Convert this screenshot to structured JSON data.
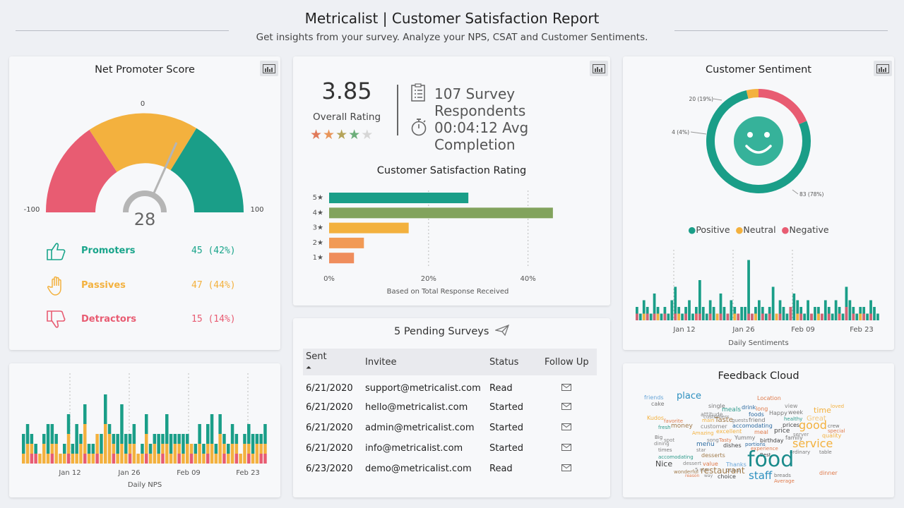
{
  "header": {
    "title": "Metricalist | Customer Satisfaction Report",
    "subtitle": "Get insights from your survey. Analyze your NPS, CSAT and Customer Sentiments."
  },
  "nps": {
    "title": "Net Promoter Score",
    "score": "28",
    "min_label": "-100",
    "max_label": "100",
    "mid_label": "0",
    "rows": [
      {
        "label": "Promoters",
        "value": "45 (42%)",
        "color": "#1aa58b"
      },
      {
        "label": "Passives",
        "value": "47 (44%)",
        "color": "#f3b13e"
      },
      {
        "label": "Detractors",
        "value": "15 (14%)",
        "color": "#e85c72"
      }
    ]
  },
  "summary": {
    "rating": "3.85",
    "rating_label": "Overall Rating",
    "rating_value": 3.85,
    "respondents": "107 Survey Respondents",
    "completion": "00:04:12 Avg Completion"
  },
  "csat": {
    "title": "Customer Satisfaction Rating",
    "footnote": "Based on Total Response Received"
  },
  "pending": {
    "title": "5 Pending Surveys",
    "headers": [
      "Sent",
      "Invitee",
      "Status",
      "Follow Up"
    ],
    "rows": [
      {
        "sent": "6/21/2020",
        "invitee": "support@metricalist.com",
        "status": "Read"
      },
      {
        "sent": "6/21/2020",
        "invitee": "hello@metricalist.com",
        "status": "Started"
      },
      {
        "sent": "6/21/2020",
        "invitee": "admin@metricalist.com",
        "status": "Started"
      },
      {
        "sent": "6/21/2020",
        "invitee": "info@metricalist.com",
        "status": "Started"
      },
      {
        "sent": "6/23/2020",
        "invitee": "demo@metricalist.com",
        "status": "Read"
      }
    ]
  },
  "sentiment": {
    "title": "Customer Sentiment",
    "legend": [
      "Positive",
      "Neutral",
      "Negative"
    ],
    "colors": {
      "positive": "#1a9e88",
      "neutral": "#f3b13e",
      "negative": "#e85c72"
    },
    "daily_label": "Daily Sentiments"
  },
  "daily_nps": {
    "label": "Daily NPS"
  },
  "cloud": {
    "title": "Feedback Cloud",
    "words": [
      {
        "t": "friends",
        "c": "#6aa6d8"
      },
      {
        "t": "cake",
        "c": "#777"
      },
      {
        "t": "place",
        "c": "#2c8fbf"
      },
      {
        "t": "Location",
        "c": "#e07a4a"
      },
      {
        "t": "single",
        "c": "#777"
      },
      {
        "t": "drink",
        "c": "#2c6aa0"
      },
      {
        "t": "long",
        "c": "#e07a4a"
      },
      {
        "t": "view",
        "c": "#888"
      },
      {
        "t": "meals",
        "c": "#2c9b8a"
      },
      {
        "t": "Happy",
        "c": "#777"
      },
      {
        "t": "week",
        "c": "#777"
      },
      {
        "t": "time",
        "c": "#f3b13e"
      },
      {
        "t": "loved",
        "c": "#f3b13e"
      },
      {
        "t": "attitude",
        "c": "#888"
      },
      {
        "t": "foods",
        "c": "#2c6aa0"
      },
      {
        "t": "Kudos",
        "c": "#f3b13e"
      },
      {
        "t": "favorite",
        "c": "#e07a4a"
      },
      {
        "t": "main",
        "c": "#f3b13e"
      },
      {
        "t": "customers",
        "c": "#888"
      },
      {
        "t": "Taste",
        "c": "#a07a4a"
      },
      {
        "t": "guests",
        "c": "#888"
      },
      {
        "t": "friend",
        "c": "#777"
      },
      {
        "t": "healthy",
        "c": "#2c9b8a"
      },
      {
        "t": "Great",
        "c": "#f3c87e"
      },
      {
        "t": "fresh",
        "c": "#2c9b8a"
      },
      {
        "t": "money",
        "c": "#a07a4a"
      },
      {
        "t": "customer",
        "c": "#888"
      },
      {
        "t": "accomodating",
        "c": "#2c6aa0"
      },
      {
        "t": "prices",
        "c": "#444"
      },
      {
        "t": "good",
        "c": "#f3b13e"
      },
      {
        "t": "crew",
        "c": "#777"
      },
      {
        "t": "excellent",
        "c": "#f3b13e"
      },
      {
        "t": "meal",
        "c": "#e07a4a"
      },
      {
        "t": "price",
        "c": "#444"
      },
      {
        "t": "server",
        "c": "#888"
      },
      {
        "t": "special",
        "c": "#e07a4a"
      },
      {
        "t": "Amazing",
        "c": "#f3b13e"
      },
      {
        "t": "Big",
        "c": "#777"
      },
      {
        "t": "song",
        "c": "#888"
      },
      {
        "t": "Tasty",
        "c": "#e07a4a"
      },
      {
        "t": "Yummy",
        "c": "#777"
      },
      {
        "t": "family",
        "c": "#777"
      },
      {
        "t": "quality",
        "c": "#f3b13e"
      },
      {
        "t": "spot",
        "c": "#888"
      },
      {
        "t": "birthday",
        "c": "#444"
      },
      {
        "t": "dining",
        "c": "#888"
      },
      {
        "t": "menu",
        "c": "#2c6aa0"
      },
      {
        "t": "dishes",
        "c": "#444"
      },
      {
        "t": "portions",
        "c": "#2c6aa0"
      },
      {
        "t": "service",
        "c": "#f3b13e"
      },
      {
        "t": "times",
        "c": "#777"
      },
      {
        "t": "star",
        "c": "#888"
      },
      {
        "t": "experience",
        "c": "#e07a4a"
      },
      {
        "t": "ordinary",
        "c": "#777"
      },
      {
        "t": "table",
        "c": "#777"
      },
      {
        "t": "accomodating",
        "c": "#2c9b8a"
      },
      {
        "t": "desserts",
        "c": "#a07a4a"
      },
      {
        "t": "Best",
        "c": "#444"
      },
      {
        "t": "Nice",
        "c": "#444"
      },
      {
        "t": "dessert",
        "c": "#888"
      },
      {
        "t": "value",
        "c": "#e07a4a"
      },
      {
        "t": "Thanks",
        "c": "#6aa6d8"
      },
      {
        "t": "food",
        "c": "#1a8b8b"
      },
      {
        "t": "5 star",
        "c": "#888"
      },
      {
        "t": "Dubai",
        "c": "#888"
      },
      {
        "t": "restaurant",
        "c": "#a07a4a"
      },
      {
        "t": "wonderful",
        "c": "#a07a4a"
      },
      {
        "t": "reason",
        "c": "#e07a4a"
      },
      {
        "t": "way",
        "c": "#888"
      },
      {
        "t": "choice",
        "c": "#444"
      },
      {
        "t": "staff",
        "c": "#2c8fbf"
      },
      {
        "t": "breads",
        "c": "#777"
      },
      {
        "t": "Average",
        "c": "#e07a4a"
      },
      {
        "t": "dinner",
        "c": "#e07a4a"
      }
    ]
  },
  "chart_data": [
    {
      "type": "bar",
      "title": "Customer Satisfaction Rating",
      "categories": [
        "5★",
        "4★",
        "3★",
        "2★",
        "1★"
      ],
      "values": [
        28,
        45,
        16,
        7,
        5
      ],
      "colors": [
        "#1a9e88",
        "#82a35d",
        "#f3b13e",
        "#f19a55",
        "#ef8d5c"
      ],
      "xlabel": "Based on Total Response Received",
      "xticks": [
        "0%",
        "20%",
        "40%"
      ],
      "xlim": [
        0,
        48
      ]
    },
    {
      "type": "pie",
      "title": "Customer Sentiment",
      "categories": [
        "Positive",
        "Neutral",
        "Negative"
      ],
      "values": [
        83,
        4,
        20
      ],
      "labels": [
        "83 (78%)",
        "4 (4%)",
        "20 (19%)"
      ]
    },
    {
      "type": "area",
      "title": "Daily Sentiments",
      "xticks": [
        "Jan 12",
        "Jan 26",
        "Feb 09",
        "Feb 23"
      ],
      "series": [
        {
          "name": "Positive",
          "values": [
            2,
            1,
            3,
            2,
            1,
            4,
            2,
            1,
            2,
            1,
            3,
            5,
            2,
            1,
            2,
            3,
            1,
            2,
            6,
            2,
            1,
            3,
            2,
            1,
            4,
            2,
            1,
            3,
            2,
            1,
            2,
            2,
            9,
            1,
            2,
            3,
            2,
            1,
            2,
            5,
            1,
            3,
            2,
            1,
            2,
            4,
            3,
            2,
            1,
            3,
            1,
            2,
            2,
            1,
            3,
            2,
            1,
            3,
            2,
            1,
            5,
            3,
            2,
            1,
            2,
            2,
            1,
            3,
            2,
            1
          ]
        },
        {
          "name": "Neutral",
          "values": [
            0,
            0,
            1,
            0,
            0,
            0,
            1,
            0,
            0,
            0,
            0,
            0,
            1,
            0,
            0,
            0,
            0,
            1,
            0,
            0,
            0,
            0,
            0,
            1,
            0,
            0,
            0,
            0,
            1,
            0,
            0,
            0,
            0,
            0,
            1,
            0,
            0,
            0,
            0,
            0,
            1,
            0,
            0,
            0,
            0,
            0,
            1,
            0,
            0,
            0,
            0,
            0,
            1,
            0,
            0,
            0,
            0,
            0,
            1,
            0,
            0,
            0,
            0,
            0,
            1,
            0,
            0,
            0,
            0,
            0
          ]
        },
        {
          "name": "Negative",
          "values": [
            1,
            0,
            0,
            1,
            0,
            1,
            0,
            0,
            1,
            0,
            0,
            1,
            0,
            0,
            1,
            0,
            0,
            1,
            1,
            0,
            0,
            1,
            0,
            0,
            1,
            0,
            1,
            0,
            0,
            1,
            0,
            0,
            1,
            1,
            0,
            0,
            1,
            0,
            1,
            0,
            0,
            1,
            0,
            0,
            2,
            0,
            0,
            1,
            0,
            0,
            1,
            0,
            0,
            1,
            0,
            1,
            0,
            0,
            1,
            0,
            2,
            0,
            1,
            0,
            0,
            1,
            0,
            1,
            0,
            0
          ]
        }
      ]
    },
    {
      "type": "bar",
      "title": "Daily NPS",
      "xticks": [
        "Jan 12",
        "Jan 26",
        "Feb 09",
        "Feb 23"
      ],
      "series": [
        {
          "name": "Promoters",
          "values": [
            2,
            2,
            1,
            1,
            0,
            1,
            3,
            2,
            1,
            0,
            1,
            2,
            1,
            3,
            1,
            2,
            1,
            1,
            0,
            2,
            3,
            1,
            1,
            2,
            4,
            2,
            1,
            2,
            0,
            1,
            2,
            1,
            1,
            2,
            1,
            3,
            2,
            1,
            1,
            2,
            1,
            0,
            1,
            2,
            1,
            2,
            3,
            1,
            2,
            1,
            1,
            2,
            1,
            0,
            1,
            2,
            2,
            1,
            1,
            2
          ]
        },
        {
          "name": "Passives",
          "values": [
            1,
            2,
            1,
            0,
            1,
            2,
            1,
            1,
            2,
            1,
            1,
            2,
            1,
            1,
            2,
            3,
            1,
            1,
            2,
            1,
            4,
            3,
            1,
            1,
            2,
            1,
            1,
            2,
            1,
            1,
            2,
            1,
            2,
            1,
            1,
            2,
            1,
            2,
            1,
            1,
            2,
            1,
            1,
            2,
            1,
            1,
            2,
            1,
            3,
            1,
            1,
            2,
            1,
            1,
            2,
            1,
            1,
            2,
            1,
            1
          ]
        },
        {
          "name": "Detractors",
          "values": [
            0,
            0,
            1,
            1,
            0,
            0,
            0,
            1,
            0,
            0,
            0,
            1,
            0,
            0,
            0,
            1,
            0,
            0,
            1,
            0,
            0,
            0,
            1,
            0,
            0,
            0,
            1,
            0,
            0,
            0,
            1,
            0,
            0,
            0,
            1,
            0,
            0,
            0,
            1,
            0,
            0,
            1,
            0,
            0,
            0,
            1,
            0,
            0,
            0,
            1,
            0,
            0,
            1,
            0,
            0,
            1,
            0,
            0,
            1,
            1
          ]
        }
      ]
    }
  ]
}
